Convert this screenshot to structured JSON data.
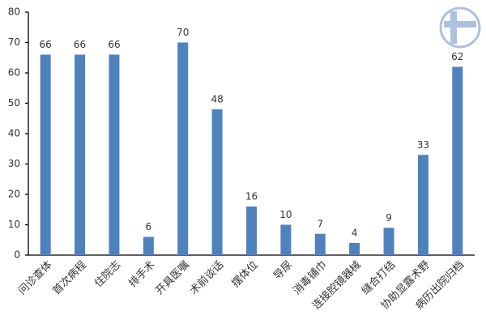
{
  "chart_data": {
    "type": "bar",
    "categories": [
      "问诊查体",
      "首次病程",
      "住院志",
      "排手术",
      "开具医嘱",
      "术前谈话",
      "摆体位",
      "导尿",
      "消毒铺巾",
      "连接腔镜器械",
      "缝合打结",
      "协助显露术野",
      "病历出院归档"
    ],
    "values": [
      66,
      66,
      66,
      6,
      70,
      48,
      16,
      10,
      7,
      4,
      9,
      33,
      62
    ],
    "color": "#4f81bd",
    "ylim": [
      0,
      80
    ],
    "yticks": [
      0,
      10,
      20,
      30,
      40,
      50,
      60,
      70,
      80
    ],
    "grid": false
  }
}
